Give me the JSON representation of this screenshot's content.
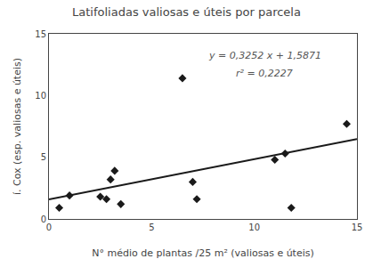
{
  "chart_data": {
    "type": "scatter",
    "title": "Latifoliadas valiosas e úteis por parcela",
    "xlabel": "N° médio de plantas /25 m² (valiosas e úteis)",
    "ylabel": "í. Cox (esp. valiosas e úteis)",
    "series": [
      {
        "type": "scatter",
        "color": "#1a1a1a",
        "marker": "diamond",
        "x": [
          0.5,
          1.0,
          2.5,
          2.8,
          3.0,
          3.2,
          3.5,
          6.5,
          7.0,
          7.2,
          11.0,
          11.5,
          11.8,
          14.5
        ],
        "values": [
          0.9,
          1.9,
          1.8,
          1.6,
          3.2,
          3.9,
          1.2,
          11.4,
          3.0,
          1.6,
          4.8,
          5.3,
          0.9,
          7.7
        ]
      },
      {
        "type": "line",
        "color": "#1a1a1a",
        "line_style": "solid",
        "x": [
          0,
          15
        ],
        "values": [
          1.5871,
          6.4651
        ]
      }
    ],
    "annotations": [
      {
        "text": "y = 0,3252 x + 1,5871",
        "x": 10.5,
        "y": 13.2
      },
      {
        "text": "r² = 0,2227",
        "x": 10.5,
        "y": 11.8
      }
    ],
    "xlim": [
      0,
      15
    ],
    "ylim": [
      0,
      15
    ],
    "xticks": [
      0,
      5,
      10,
      15
    ],
    "yticks": [
      0,
      5,
      10,
      15
    ],
    "grid": false
  }
}
